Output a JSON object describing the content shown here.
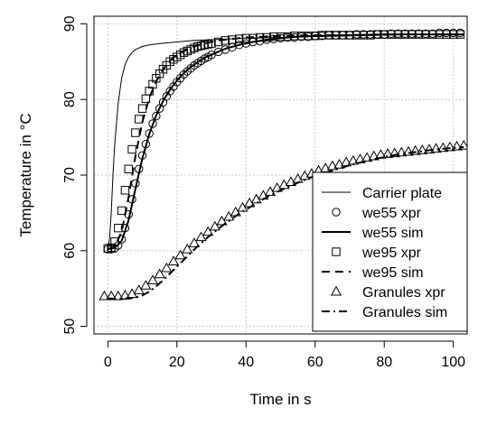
{
  "chart_data": {
    "type": "line",
    "title": "",
    "xlabel": "Time in s",
    "ylabel": "Temperature in °C",
    "xlim": [
      -4,
      104
    ],
    "ylim": [
      49,
      91
    ],
    "xticks": [
      0,
      20,
      40,
      60,
      80,
      100
    ],
    "yticks": [
      50,
      60,
      70,
      80,
      90
    ],
    "grid": true,
    "legend_position": "bottom-right",
    "series": [
      {
        "name": "Carrier plate",
        "kind": "line",
        "style": "solid-thin",
        "x": [
          0,
          0.5,
          1,
          1.5,
          2,
          3,
          4,
          5,
          6,
          7,
          8,
          10,
          12,
          15,
          20,
          25,
          30,
          40,
          50,
          60,
          70,
          80,
          90,
          100,
          103
        ],
        "y": [
          60.3,
          61.5,
          65,
          70,
          74,
          79.5,
          82.8,
          84.6,
          85.6,
          86.2,
          86.6,
          87.0,
          87.2,
          87.4,
          87.6,
          87.8,
          87.9,
          88.1,
          88.2,
          88.3,
          88.4,
          88.5,
          88.6,
          88.6,
          88.6
        ]
      },
      {
        "name": "we55 xpr",
        "kind": "points",
        "marker": "circle",
        "x": [
          0,
          1,
          2,
          3,
          4,
          5,
          6,
          7,
          8,
          9,
          10,
          11,
          12,
          13,
          14,
          15,
          16,
          17,
          18,
          19,
          20,
          21,
          22,
          23,
          24,
          25,
          26,
          27,
          28,
          29,
          30,
          32,
          34,
          36,
          38,
          40,
          42,
          44,
          46,
          48,
          50,
          52,
          54,
          56,
          58,
          60,
          62,
          64,
          66,
          68,
          70,
          72,
          74,
          76,
          78,
          80,
          82,
          84,
          86,
          88,
          90,
          92,
          94,
          96,
          98,
          100,
          102
        ],
        "y": [
          60.2,
          60.2,
          60.3,
          60.7,
          61.5,
          63.0,
          64.8,
          66.8,
          68.9,
          70.8,
          72.6,
          74.1,
          75.5,
          76.8,
          77.8,
          78.8,
          79.6,
          80.4,
          81.1,
          81.7,
          82.3,
          82.8,
          83.3,
          83.7,
          84.1,
          84.5,
          84.8,
          85.1,
          85.4,
          85.6,
          85.9,
          86.3,
          86.6,
          86.9,
          87.2,
          87.4,
          87.6,
          87.7,
          87.9,
          88.0,
          88.1,
          88.2,
          88.2,
          88.3,
          88.3,
          88.4,
          88.4,
          88.5,
          88.5,
          88.5,
          88.5,
          88.6,
          88.6,
          88.6,
          88.6,
          88.6,
          88.7,
          88.7,
          88.7,
          88.7,
          88.7,
          88.7,
          88.7,
          88.8,
          88.8,
          88.8,
          88.8
        ]
      },
      {
        "name": "we55 sim",
        "kind": "line",
        "style": "solid-thick",
        "x": [
          0,
          2,
          4,
          6,
          8,
          10,
          12,
          14,
          16,
          18,
          20,
          22,
          24,
          26,
          28,
          30,
          34,
          38,
          42,
          46,
          50,
          55,
          60,
          70,
          80,
          90,
          100,
          103
        ],
        "y": [
          60.2,
          60.4,
          61.3,
          64.0,
          68.2,
          72.2,
          75.4,
          77.9,
          79.8,
          81.3,
          82.5,
          83.5,
          84.3,
          84.9,
          85.5,
          85.9,
          86.7,
          87.2,
          87.6,
          87.9,
          88.1,
          88.3,
          88.4,
          88.5,
          88.6,
          88.6,
          88.6,
          88.6
        ]
      },
      {
        "name": "we95 xpr",
        "kind": "points",
        "marker": "square",
        "x": [
          0,
          1,
          2,
          3,
          4,
          5,
          6,
          7,
          8,
          9,
          10,
          11,
          12,
          13,
          14,
          15,
          16,
          17,
          18,
          19,
          20,
          21,
          22,
          23,
          24,
          25,
          26,
          27,
          28,
          29,
          30,
          32,
          34,
          36,
          38,
          40,
          42,
          44,
          46,
          48,
          50,
          52,
          54,
          56,
          58,
          60,
          62,
          64,
          66,
          68,
          70,
          72,
          74,
          76,
          78,
          80,
          82,
          84,
          86,
          88,
          90,
          92,
          94,
          96,
          98,
          100,
          102
        ],
        "y": [
          60.3,
          60.4,
          61.2,
          63.0,
          65.3,
          68.0,
          70.8,
          73.4,
          75.6,
          77.4,
          78.8,
          80.1,
          81.1,
          82.0,
          82.8,
          83.4,
          84.0,
          84.5,
          85.0,
          85.3,
          85.6,
          85.9,
          86.2,
          86.4,
          86.6,
          86.8,
          87.0,
          87.1,
          87.2,
          87.3,
          87.4,
          87.6,
          87.8,
          87.9,
          88.0,
          88.1,
          88.1,
          88.2,
          88.2,
          88.3,
          88.3,
          88.3,
          88.4,
          88.4,
          88.4,
          88.4,
          88.5,
          88.5,
          88.5,
          88.5,
          88.5,
          88.5,
          88.5,
          88.5,
          88.6,
          88.6,
          88.6,
          88.6,
          88.6,
          88.6,
          88.6,
          88.6,
          88.6,
          88.6,
          88.6,
          88.6,
          88.6
        ]
      },
      {
        "name": "we95 sim",
        "kind": "line",
        "style": "dashed",
        "x": [
          0,
          2,
          4,
          6,
          8,
          10,
          12,
          14,
          16,
          18,
          20,
          24,
          28,
          32,
          36,
          40,
          50,
          60,
          70,
          80,
          90,
          100,
          103
        ],
        "y": [
          60.2,
          60.5,
          62.5,
          67.0,
          72.5,
          77.0,
          80.2,
          82.4,
          84.0,
          85.1,
          85.9,
          86.9,
          87.4,
          87.8,
          88.0,
          88.2,
          88.4,
          88.5,
          88.5,
          88.6,
          88.6,
          88.6,
          88.6
        ]
      },
      {
        "name": "Granules xpr",
        "kind": "points",
        "marker": "triangle",
        "x": [
          -1,
          1,
          3,
          5,
          7,
          9,
          11,
          13,
          15,
          17,
          19,
          21,
          23,
          25,
          27,
          29,
          31,
          33,
          35,
          37,
          39,
          41,
          43,
          45,
          47,
          49,
          51,
          53,
          55,
          57,
          59,
          61,
          63,
          65,
          67,
          69,
          71,
          73,
          75,
          77,
          79,
          81,
          83,
          85,
          87,
          89,
          91,
          93,
          95,
          97,
          99,
          101,
          103
        ],
        "y": [
          54.0,
          54.0,
          54.0,
          54.1,
          54.3,
          54.8,
          55.4,
          56.1,
          56.9,
          57.7,
          58.6,
          59.4,
          60.2,
          61.0,
          61.8,
          62.5,
          63.2,
          63.9,
          64.5,
          65.1,
          65.7,
          66.3,
          66.8,
          67.3,
          67.8,
          68.3,
          68.7,
          69.1,
          69.5,
          69.9,
          70.2,
          70.6,
          70.9,
          71.2,
          71.4,
          71.7,
          71.9,
          72.1,
          72.3,
          72.5,
          72.7,
          72.8,
          72.9,
          73.0,
          73.1,
          73.2,
          73.3,
          73.4,
          73.5,
          73.6,
          73.7,
          73.8,
          73.9
        ]
      },
      {
        "name": "Granules sim",
        "kind": "line",
        "style": "dashdot",
        "x": [
          0,
          4,
          8,
          10,
          12,
          14,
          16,
          18,
          20,
          22,
          24,
          26,
          28,
          30,
          34,
          38,
          42,
          46,
          50,
          55,
          60,
          65,
          70,
          75,
          80,
          85,
          90,
          95,
          100,
          103
        ],
        "y": [
          53.7,
          53.6,
          53.8,
          54.1,
          54.6,
          55.3,
          56.1,
          57.0,
          57.9,
          58.8,
          59.7,
          60.6,
          61.4,
          62.2,
          63.6,
          64.9,
          66.0,
          67.1,
          68.0,
          69.0,
          69.9,
          70.6,
          71.3,
          71.9,
          72.4,
          72.8,
          73.1,
          73.4,
          73.6,
          73.7
        ]
      }
    ]
  }
}
